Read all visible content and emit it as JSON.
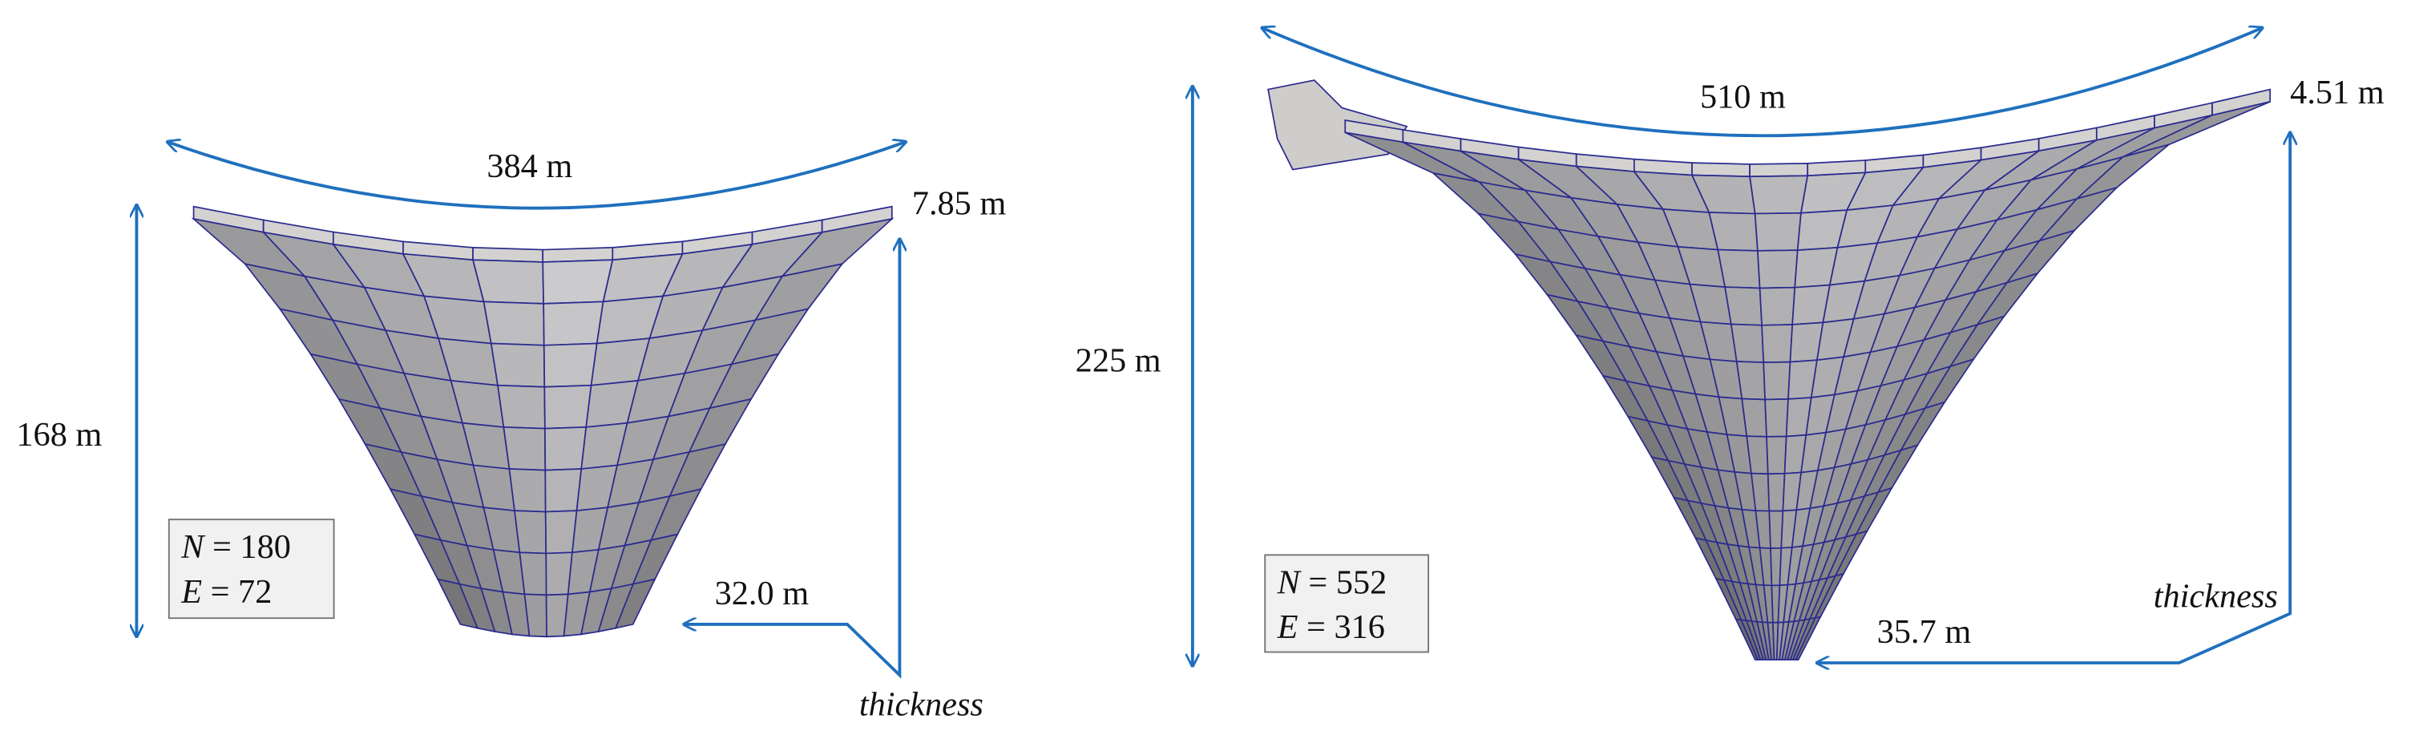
{
  "panels": [
    {
      "span": "384 m",
      "crest_thickness": "7.85 m",
      "height": "168 m",
      "base_thickness": "32.0 m",
      "thickness_label": "thickness",
      "nodes": {
        "symbol": "N",
        "text": " = 180"
      },
      "elements": {
        "symbol": "E",
        "text": " = 72"
      }
    },
    {
      "span": "510 m",
      "crest_thickness": "4.51 m",
      "height": "225 m",
      "base_thickness": "35.7 m",
      "thickness_label": "thickness",
      "nodes": {
        "symbol": "N",
        "text": " = 552"
      },
      "elements": {
        "symbol": "E",
        "text": " = 316"
      }
    }
  ]
}
